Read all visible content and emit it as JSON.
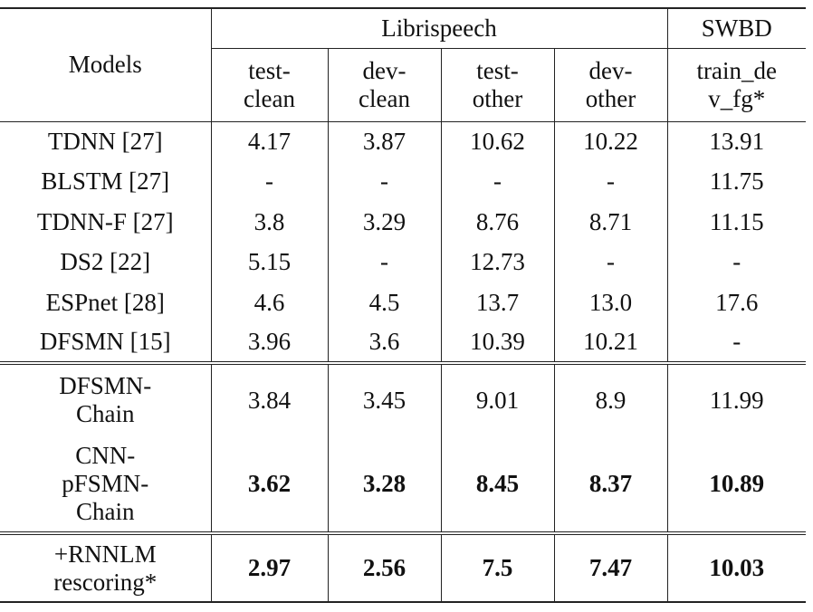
{
  "table": {
    "header": {
      "models": "Models",
      "groups": [
        {
          "label": "Librispeech",
          "span": 4
        },
        {
          "label": "SWBD",
          "span": 1
        }
      ],
      "columns": [
        [
          "test-",
          "clean"
        ],
        [
          "dev-",
          "clean"
        ],
        [
          "test-",
          "other"
        ],
        [
          "dev-",
          "other"
        ],
        [
          "train_de",
          "v_fg*"
        ]
      ]
    },
    "rows": [
      {
        "model": [
          "TDNN [27]"
        ],
        "values": [
          "4.17",
          "3.87",
          "10.62",
          "10.22",
          "13.91"
        ],
        "bold": false
      },
      {
        "model": [
          "BLSTM [27]"
        ],
        "values": [
          "-",
          "-",
          "-",
          "-",
          "11.75"
        ],
        "bold": false
      },
      {
        "model": [
          "TDNN-F [27]"
        ],
        "values": [
          "3.8",
          "3.29",
          "8.76",
          "8.71",
          "11.15"
        ],
        "bold": false
      },
      {
        "model": [
          "DS2 [22]"
        ],
        "values": [
          "5.15",
          "-",
          "12.73",
          "-",
          "-"
        ],
        "bold": false
      },
      {
        "model": [
          "ESPnet [28]"
        ],
        "values": [
          "4.6",
          "4.5",
          "13.7",
          "13.0",
          "17.6"
        ],
        "bold": false
      },
      {
        "model": [
          "DFSMN [15]"
        ],
        "values": [
          "3.96",
          "3.6",
          "10.39",
          "10.21",
          "-"
        ],
        "bold": false
      },
      {
        "model": [
          "DFSMN-",
          "Chain"
        ],
        "values": [
          "3.84",
          "3.45",
          "9.01",
          "8.9",
          "11.99"
        ],
        "bold": false
      },
      {
        "model": [
          "CNN-",
          "pFSMN-",
          "Chain"
        ],
        "values": [
          "3.62",
          "3.28",
          "8.45",
          "8.37",
          "10.89"
        ],
        "bold": true
      },
      {
        "model": [
          "+RNNLM",
          "rescoring*"
        ],
        "values": [
          "2.97",
          "2.56",
          "7.5",
          "7.47",
          "10.03"
        ],
        "bold": true
      }
    ]
  }
}
